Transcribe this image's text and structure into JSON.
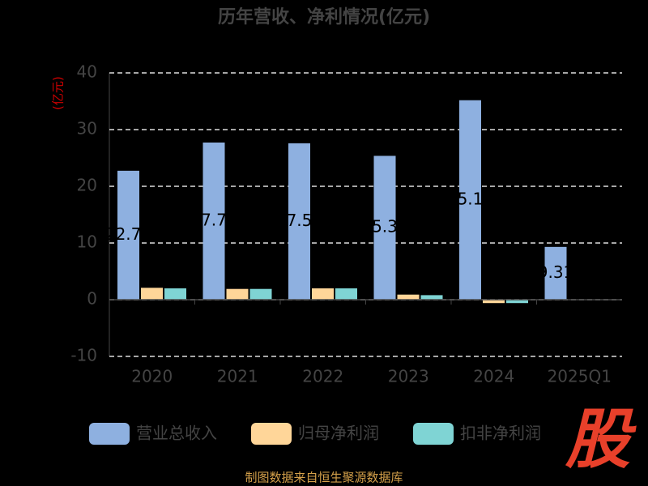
{
  "chart_data": {
    "type": "bar",
    "title": "历年营收、净利情况(亿元)",
    "y_label": "(亿元)",
    "categories": [
      "2020",
      "2021",
      "2022",
      "2023",
      "2024",
      "2025Q1"
    ],
    "series": [
      {
        "name": "营业总收入",
        "color": "#8eb0e0",
        "values": [
          22.74,
          27.72,
          27.59,
          25.37,
          35.18,
          9.31
        ],
        "show_labels": true
      },
      {
        "name": "归母净利润",
        "color": "#ffd699",
        "values": [
          2.1,
          1.9,
          2.0,
          0.9,
          -0.6,
          0.05
        ]
      },
      {
        "name": "扣非净利润",
        "color": "#7fd4d4",
        "values": [
          2.0,
          1.9,
          2.0,
          0.8,
          -0.6,
          0.05
        ]
      }
    ],
    "ylim": [
      -10,
      40
    ],
    "yticks": [
      -10,
      0,
      10,
      20,
      30,
      40
    ],
    "grid": true,
    "source": "制图数据来自恒生聚源数据库",
    "logo": "股"
  }
}
